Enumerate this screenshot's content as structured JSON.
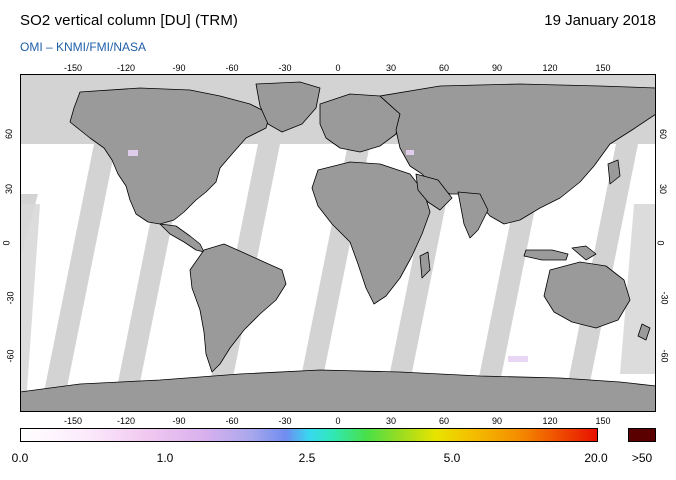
{
  "header": {
    "title": "SO2 vertical column [DU] (TRM)",
    "date": "19 January 2018",
    "credits": "OMI  –  KNMI/FMI/NASA"
  },
  "map": {
    "lon_ticks": [
      "-150",
      "-120",
      "-90",
      "-60",
      "-30",
      "0",
      "30",
      "60",
      "90",
      "120",
      "150"
    ],
    "lat_ticks_left": [
      "60",
      "30",
      "0",
      "-30",
      "-60"
    ],
    "lat_ticks_right": [
      "60",
      "30",
      "0",
      "-30",
      "-60"
    ],
    "colors": {
      "land": "#9a9a9a",
      "no_data": "#d3d3d3",
      "ocean_valid": "#ffffff",
      "coastline": "#000000"
    }
  },
  "colorbar": {
    "labels": [
      "0.0",
      "1.0",
      "2.5",
      "5.0",
      "20.0"
    ],
    "over_label": ">50",
    "over_color": "#5a0000"
  }
}
